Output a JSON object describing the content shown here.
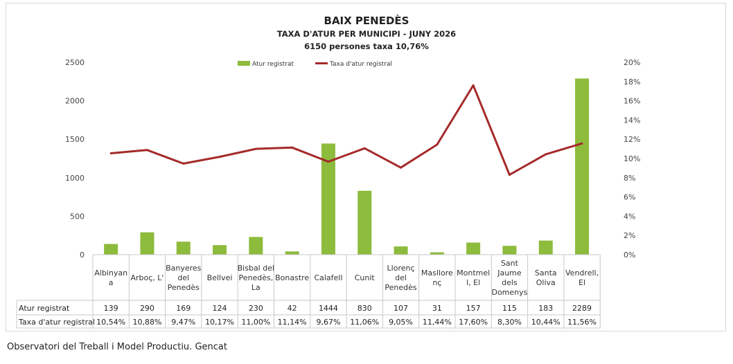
{
  "chart_data": {
    "type": "bar",
    "title": "BAIX PENEDÈS",
    "subtitle": "TAXA D'ATUR PER MUNICIPI - JUNY 2026",
    "subtitle2": "6150 persones  taxa  10,76%",
    "categories": [
      [
        "Albinyan",
        "a"
      ],
      [
        "Arboç, L'"
      ],
      [
        "Banyeres",
        "del",
        "Penedès"
      ],
      [
        "Bellvei"
      ],
      [
        "Bisbal del",
        "Penedès,",
        "La"
      ],
      [
        "Bonastre"
      ],
      [
        "Calafell"
      ],
      [
        "Cunit"
      ],
      [
        "Llorenç",
        "del",
        "Penedès"
      ],
      [
        "Masllore",
        "nç"
      ],
      [
        "Montmel",
        "l, El"
      ],
      [
        "Sant",
        "Jaume",
        "dels",
        "Domenys"
      ],
      [
        "Santa",
        "Oliva"
      ],
      [
        "Vendrell,",
        "El"
      ]
    ],
    "series": [
      {
        "name": "Atur registrat",
        "type": "bar",
        "axis": "left",
        "color": "#8dbb3c",
        "values": [
          139,
          290,
          169,
          124,
          230,
          42,
          1444,
          830,
          107,
          31,
          157,
          115,
          183,
          2289
        ],
        "labels": [
          "139",
          "290",
          "169",
          "124",
          "230",
          "42",
          "1444",
          "830",
          "107",
          "31",
          "157",
          "115",
          "183",
          "2289"
        ]
      },
      {
        "name": "Taxa d'atur registral",
        "type": "line",
        "axis": "right",
        "color": "#a52a2a",
        "values": [
          10.54,
          10.88,
          9.47,
          10.17,
          11.0,
          11.14,
          9.67,
          11.06,
          9.05,
          11.44,
          17.6,
          8.3,
          10.44,
          11.56
        ],
        "labels": [
          "10,54%",
          "10,88%",
          "9,47%",
          "10,17%",
          "11,00%",
          "11,14%",
          "9,67%",
          "11,06%",
          "9,05%",
          "11,44%",
          "17,60%",
          "8,30%",
          "10,44%",
          "11,56%"
        ]
      }
    ],
    "table_row_headers": [
      "Atur registrat",
      "Taxa d'atur registral"
    ],
    "y_left": {
      "ylim": [
        0,
        2500
      ],
      "ticks": [
        0,
        500,
        1000,
        1500,
        2000,
        2500
      ],
      "tick_labels": [
        "0",
        "500",
        "1000",
        "1500",
        "2000",
        "2500"
      ]
    },
    "y_right": {
      "ylim": [
        0,
        20
      ],
      "ticks": [
        0,
        2,
        4,
        6,
        8,
        10,
        12,
        14,
        16,
        18,
        20
      ],
      "tick_labels": [
        "0%",
        "2%",
        "4%",
        "6%",
        "8%",
        "10%",
        "12%",
        "14%",
        "16%",
        "18%",
        "20%"
      ]
    },
    "grid": false,
    "legend_position": "top-center"
  },
  "footer": "Observatori del Treball i Model Productiu. Gencat"
}
